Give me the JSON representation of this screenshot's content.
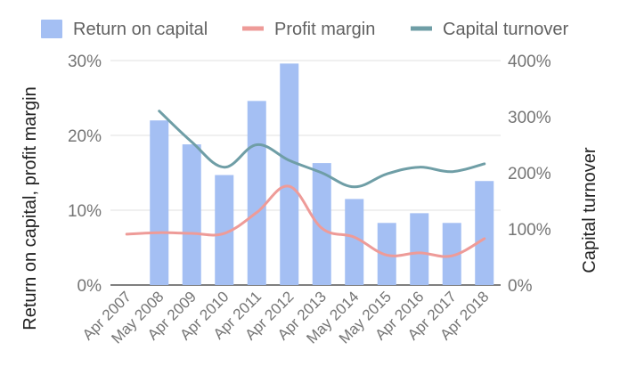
{
  "chart_data": {
    "type": "bar+line",
    "categories": [
      "Apr 2007",
      "May 2008",
      "Apr 2009",
      "Apr 2010",
      "Apr 2011",
      "Apr 2012",
      "Apr 2013",
      "May 2014",
      "May 2015",
      "Apr 2016",
      "Apr 2017",
      "Apr 2018"
    ],
    "series": [
      {
        "name": "Return on capital",
        "kind": "bar",
        "axis": "left",
        "color": "#a4bff3",
        "values": [
          null,
          22,
          18.8,
          14.7,
          24.6,
          29.6,
          16.3,
          11.5,
          8.3,
          9.6,
          8.3,
          13.9
        ]
      },
      {
        "name": "Profit margin",
        "kind": "line",
        "axis": "left",
        "color": "#ee9b98",
        "values": [
          6.8,
          7.0,
          6.9,
          6.9,
          9.7,
          13.2,
          7.6,
          6.4,
          4.0,
          4.3,
          3.9,
          6.2
        ]
      },
      {
        "name": "Capital turnover",
        "kind": "line",
        "axis": "right",
        "color": "#6f9ea6",
        "values": [
          null,
          310,
          255,
          210,
          250,
          222,
          200,
          175,
          198,
          210,
          202,
          216
        ]
      }
    ],
    "y_left": {
      "label": "Return on capital, profit margin",
      "ylim": [
        0,
        30
      ],
      "ticks": [
        "0%",
        "10%",
        "20%",
        "30%"
      ]
    },
    "y_right": {
      "label": "Capital turnover",
      "ylim": [
        0,
        400
      ],
      "ticks": [
        "0%",
        "100%",
        "200%",
        "300%",
        "400%"
      ]
    },
    "grid": true,
    "legend_position": "top"
  }
}
